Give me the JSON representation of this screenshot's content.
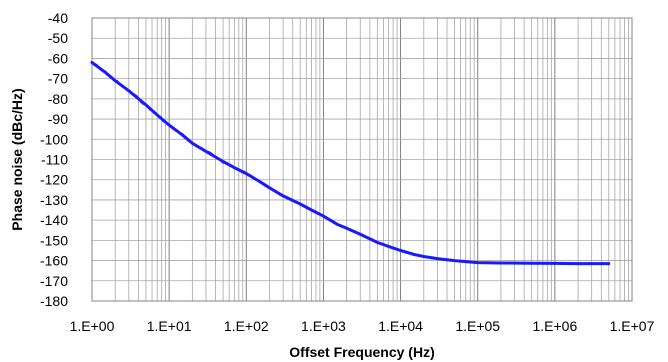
{
  "chart_data": {
    "type": "line",
    "title": "",
    "xlabel": "Offset Frequency (Hz)",
    "ylabel": "Phase noise (dBc/Hz)",
    "xscale": "log",
    "xlim": [
      1,
      10000000
    ],
    "ylim": [
      -180,
      -40
    ],
    "x_tick_labels": [
      "1.E+00",
      "1.E+01",
      "1.E+02",
      "1.E+03",
      "1.E+04",
      "1.E+05",
      "1.E+06",
      "1.E+07"
    ],
    "y_tick_labels": [
      "-40",
      "-50",
      "-60",
      "-70",
      "-80",
      "-90",
      "-100",
      "-110",
      "-120",
      "-130",
      "-140",
      "-150",
      "-160",
      "-170",
      "-180"
    ],
    "grid": true,
    "legend": "none",
    "series_color": "#1a1aff",
    "series": [
      {
        "x": [
          1,
          1.5,
          2,
          3,
          5,
          7,
          10,
          15,
          20,
          30,
          50,
          70,
          100,
          150,
          200,
          300,
          500,
          700,
          1000,
          1500,
          2000,
          3000,
          5000,
          7000,
          10000,
          15000,
          20000,
          30000,
          50000,
          70000,
          100000,
          200000,
          500000,
          1000000,
          2000000,
          5000000
        ],
        "y": [
          -62,
          -67,
          -71,
          -76,
          -83,
          -88,
          -93,
          -98,
          -102,
          -106,
          -111,
          -114,
          -117,
          -121,
          -124,
          -128,
          -132,
          -135,
          -138,
          -142,
          -144,
          -147,
          -151,
          -153,
          -155,
          -157,
          -158,
          -159,
          -160,
          -160.5,
          -161,
          -161.2,
          -161.3,
          -161.4,
          -161.5,
          -161.5
        ]
      }
    ]
  }
}
